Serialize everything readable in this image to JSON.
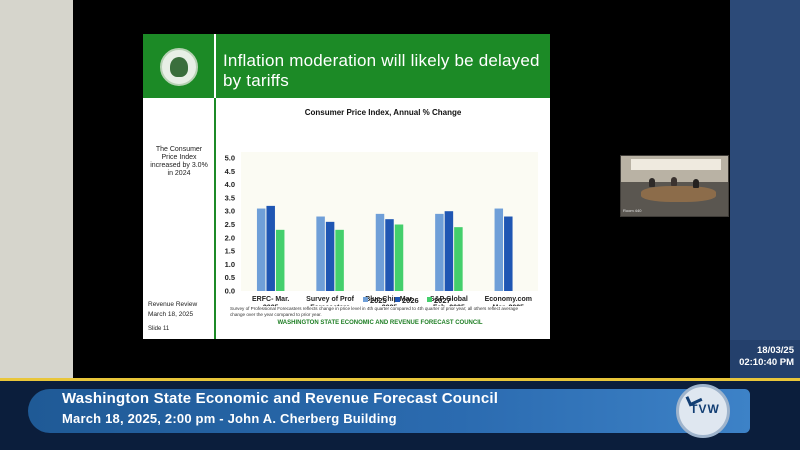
{
  "slide": {
    "title": "Inflation moderation will likely be delayed by tariffs",
    "side_note": "The Consumer Price Index increased by 3.0% in 2024",
    "review_title": "Revenue Review",
    "review_date": "March 18, 2025",
    "slide_number": "Slide 11",
    "seal_icon": "washington-state-seal-icon"
  },
  "chart_data": {
    "type": "bar",
    "title": "Consumer Price Index, Annual % Change",
    "categories": [
      [
        "ERFC- Mar.",
        "2025"
      ],
      [
        "Survey of Prof",
        "Forecasters",
        "2025Q1*"
      ],
      [
        "Blue Chip Mar.",
        "2025"
      ],
      [
        "S&P Global",
        "Feb. 2025"
      ],
      [
        "Economy.com",
        "Mar. 2025"
      ]
    ],
    "series": [
      {
        "name": "2025",
        "color": "#6f9fd8",
        "values": [
          3.1,
          2.8,
          2.9,
          2.9,
          3.1
        ]
      },
      {
        "name": "2026",
        "color": "#1f56b3",
        "values": [
          3.2,
          2.6,
          2.7,
          3.0,
          2.8
        ]
      },
      {
        "name": "2027",
        "color": "#44cf6c",
        "values": [
          2.3,
          2.3,
          2.5,
          2.4,
          null
        ]
      }
    ],
    "ylim": [
      0,
      5.0
    ],
    "yticks": [
      "0.0",
      "0.5",
      "1.0",
      "1.5",
      "2.0",
      "2.5",
      "3.0",
      "3.5",
      "4.0",
      "4.5",
      "5.0"
    ],
    "legend_position": "bottom",
    "note": "Survey of Professional Forecasters reflects change in price level in 4th quarter compared to 4th quarter of prior year; all others reflect average change over the year compared to prior year.",
    "source": "WASHINGTON STATE ECONOMIC AND REVENUE FORECAST COUNCIL"
  },
  "camera": {
    "label": "Room 440"
  },
  "timestamp": {
    "date": "18/03/25",
    "time": "02:10:40 PM"
  },
  "lower_third": {
    "title": "Washington State Economic and Revenue Forecast Council",
    "subtitle": "March 18, 2025, 2:00 pm - John A. Cherberg Building",
    "logo_text": "TVW"
  }
}
